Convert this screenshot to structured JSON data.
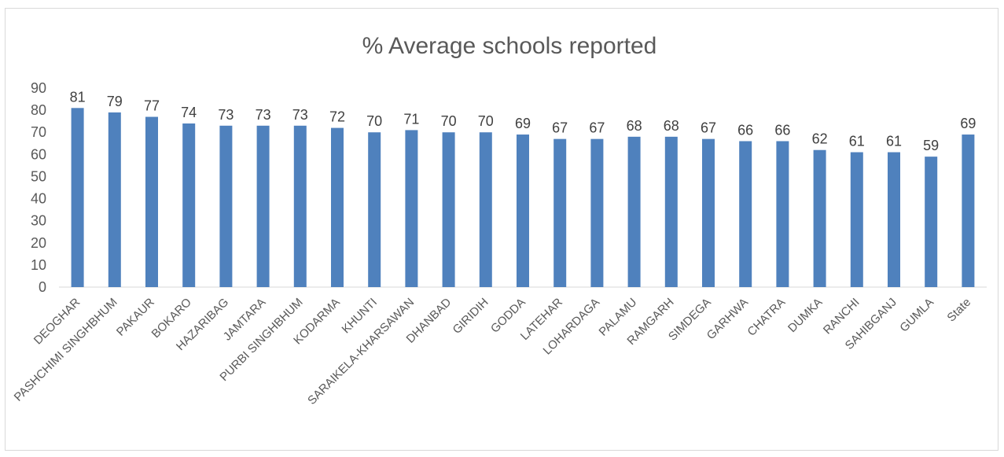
{
  "chart_data": {
    "type": "bar",
    "title": "%  Average schools reported",
    "xlabel": "",
    "ylabel": "",
    "ylim": [
      0,
      90
    ],
    "yticks": [
      0,
      10,
      20,
      30,
      40,
      50,
      60,
      70,
      80,
      90
    ],
    "grid": false,
    "legend": "none",
    "bar_color": "#4f81bd",
    "categories": [
      "DEOGHAR",
      "PASHCHIMI SINGHBHUM",
      "PAKAUR",
      "BOKARO",
      "HAZARIBAG",
      "JAMTARA",
      "PURBI SINGHBHUM",
      "KODARMA",
      "KHUNTI",
      "SARAIKELA-KHARSAWAN",
      "DHANBAD",
      "GIRIDIH",
      "GODDA",
      "LATEHAR",
      "LOHARDAGA",
      "PALAMU",
      "RAMGARH",
      "SIMDEGA",
      "GARHWA",
      "CHATRA",
      "DUMKA",
      "RANCHI",
      "SAHIBGANJ",
      "GUMLA",
      "State"
    ],
    "values": [
      81,
      79,
      77,
      74,
      73,
      73,
      73,
      72,
      70,
      71,
      70,
      70,
      69,
      67,
      67,
      68,
      68,
      67,
      66,
      66,
      62,
      61,
      61,
      59,
      69
    ],
    "data_labels": [
      "81",
      "79",
      "77",
      "74",
      "73",
      "73",
      "73",
      "72",
      "70",
      "71",
      "70",
      "70",
      "69",
      "67",
      "67",
      "68",
      "68",
      "67",
      "66",
      "66",
      "62",
      "61",
      "61",
      "59",
      "69"
    ]
  }
}
